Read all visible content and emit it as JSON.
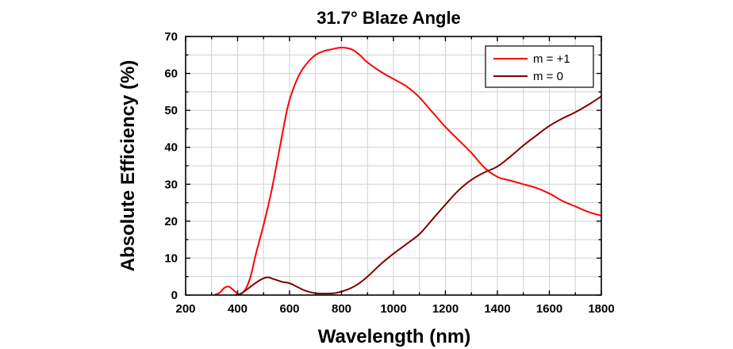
{
  "chart_data": {
    "type": "line",
    "title": "31.7° Blaze Angle",
    "xlabel": "Wavelength (nm)",
    "ylabel": "Absolute Efficiency (%)",
    "xlim": [
      200,
      1800
    ],
    "ylim": [
      0,
      70
    ],
    "xticks": [
      200,
      400,
      600,
      800,
      1000,
      1200,
      1400,
      1600,
      1800
    ],
    "yticks": [
      0,
      10,
      20,
      30,
      40,
      50,
      60,
      70
    ],
    "x_minor_step": 100,
    "y_minor_step": 5,
    "grid": true,
    "legend_position": "top-right",
    "series": [
      {
        "name": "m = +1",
        "color": "#ff0000",
        "points": [
          [
            310,
            0
          ],
          [
            330,
            0.6
          ],
          [
            350,
            2
          ],
          [
            365,
            2.3
          ],
          [
            380,
            1.6
          ],
          [
            400,
            0.4
          ],
          [
            410,
            0.2
          ],
          [
            430,
            1.5
          ],
          [
            450,
            5
          ],
          [
            470,
            11
          ],
          [
            500,
            19
          ],
          [
            530,
            28
          ],
          [
            560,
            39
          ],
          [
            590,
            50
          ],
          [
            610,
            55
          ],
          [
            640,
            60
          ],
          [
            670,
            63
          ],
          [
            700,
            65
          ],
          [
            730,
            66
          ],
          [
            760,
            66.5
          ],
          [
            800,
            67
          ],
          [
            840,
            66.5
          ],
          [
            870,
            65
          ],
          [
            900,
            63
          ],
          [
            950,
            60.5
          ],
          [
            1000,
            58.5
          ],
          [
            1050,
            56.5
          ],
          [
            1100,
            53.5
          ],
          [
            1150,
            49.5
          ],
          [
            1200,
            45.5
          ],
          [
            1250,
            42
          ],
          [
            1300,
            38.5
          ],
          [
            1350,
            34.5
          ],
          [
            1400,
            32
          ],
          [
            1450,
            31
          ],
          [
            1500,
            30
          ],
          [
            1550,
            29
          ],
          [
            1600,
            27.5
          ],
          [
            1650,
            25.5
          ],
          [
            1700,
            24
          ],
          [
            1750,
            22.5
          ],
          [
            1800,
            21.5
          ]
        ]
      },
      {
        "name": "m = 0",
        "color": "#800000",
        "points": [
          [
            390,
            0
          ],
          [
            410,
            0.3
          ],
          [
            430,
            1.2
          ],
          [
            460,
            2.8
          ],
          [
            490,
            4.2
          ],
          [
            515,
            4.8
          ],
          [
            540,
            4.3
          ],
          [
            570,
            3.6
          ],
          [
            600,
            3.2
          ],
          [
            630,
            2.2
          ],
          [
            660,
            1.2
          ],
          [
            700,
            0.5
          ],
          [
            740,
            0.4
          ],
          [
            780,
            0.6
          ],
          [
            820,
            1.4
          ],
          [
            860,
            2.8
          ],
          [
            900,
            5
          ],
          [
            950,
            8.3
          ],
          [
            1000,
            11.2
          ],
          [
            1050,
            13.8
          ],
          [
            1100,
            16.5
          ],
          [
            1150,
            20.5
          ],
          [
            1200,
            24.5
          ],
          [
            1250,
            28.3
          ],
          [
            1300,
            31.2
          ],
          [
            1350,
            33.2
          ],
          [
            1400,
            34.8
          ],
          [
            1450,
            37.5
          ],
          [
            1500,
            40.5
          ],
          [
            1550,
            43.2
          ],
          [
            1600,
            45.8
          ],
          [
            1650,
            47.8
          ],
          [
            1700,
            49.5
          ],
          [
            1750,
            51.5
          ],
          [
            1800,
            53.8
          ]
        ]
      }
    ]
  }
}
